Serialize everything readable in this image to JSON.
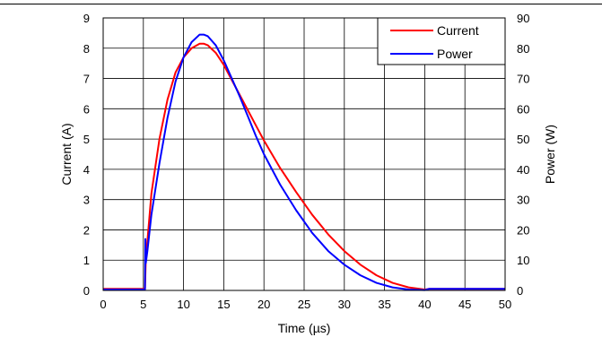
{
  "chart_data": {
    "type": "line",
    "title": "",
    "xlabel": "Time (µs)",
    "ylabel_left": "Current (A)",
    "ylabel_right": "Power (W)",
    "xlim": [
      0,
      50
    ],
    "ylim_left": [
      0,
      9
    ],
    "ylim_right": [
      0,
      90
    ],
    "xticks": [
      "0",
      "5",
      "10",
      "15",
      "20",
      "25",
      "30",
      "35",
      "40",
      "45",
      "50"
    ],
    "yticks_left": [
      "0",
      "1",
      "2",
      "3",
      "4",
      "5",
      "6",
      "7",
      "8",
      "9"
    ],
    "yticks_right": [
      "0",
      "10",
      "20",
      "30",
      "40",
      "50",
      "60",
      "70",
      "80",
      "90"
    ],
    "grid": true,
    "legend_position": "top-right",
    "series": [
      {
        "name": "Current",
        "axis": "left",
        "color": "#ff0000",
        "x": [
          0,
          5.2,
          5.3,
          6,
          7,
          8,
          9,
          10,
          11,
          12,
          12.5,
          13,
          14,
          15,
          16,
          17,
          18,
          19,
          20,
          22,
          24,
          26,
          28,
          30,
          32,
          34,
          36,
          38,
          40,
          40.5,
          45,
          50
        ],
        "y": [
          0.05,
          0.05,
          1.0,
          3.2,
          5.0,
          6.3,
          7.2,
          7.7,
          8.0,
          8.15,
          8.15,
          8.1,
          7.85,
          7.45,
          6.95,
          6.45,
          5.95,
          5.45,
          4.95,
          4.05,
          3.25,
          2.5,
          1.85,
          1.3,
          0.85,
          0.5,
          0.25,
          0.1,
          0.03,
          0.05,
          0.05,
          0.05
        ]
      },
      {
        "name": "Power",
        "axis": "right",
        "color": "#0000ff",
        "x": [
          0,
          5.2,
          5.25,
          5.3,
          5.5,
          6,
          7,
          8,
          9,
          10,
          11,
          12,
          12.5,
          13,
          14,
          15,
          16,
          17,
          18,
          19,
          20,
          22,
          24,
          26,
          28,
          30,
          32,
          34,
          36,
          38,
          40,
          40.5,
          45,
          50
        ],
        "y": [
          0.3,
          0.3,
          17,
          9,
          13,
          25,
          42,
          57,
          69,
          77,
          82,
          84.5,
          84.5,
          84,
          81,
          76,
          70,
          64,
          57.5,
          51,
          45,
          35,
          26.5,
          19,
          13,
          8.5,
          5,
          2.5,
          1.0,
          0.3,
          0.1,
          0.5,
          0.5,
          0.5
        ]
      }
    ]
  }
}
